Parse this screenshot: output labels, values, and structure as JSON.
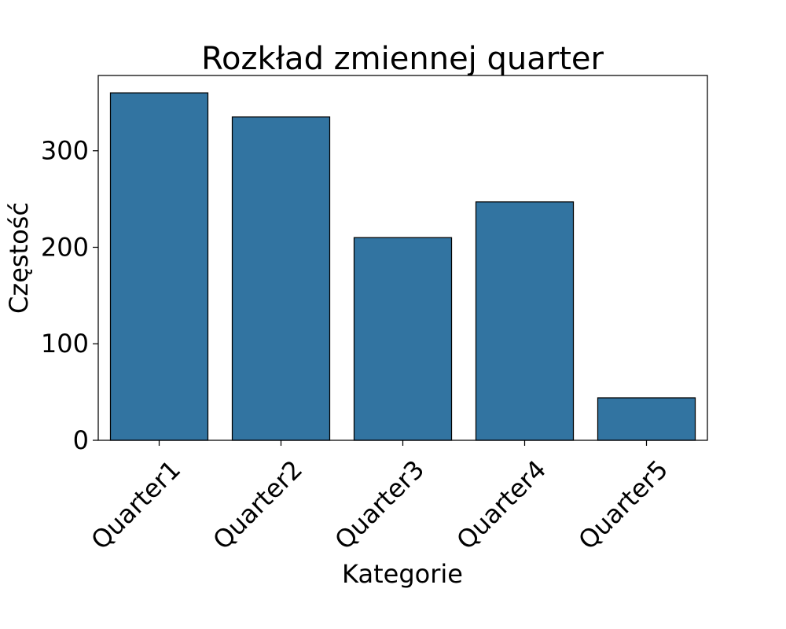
{
  "chart_data": {
    "type": "bar",
    "title": "Rozkład zmiennej quarter",
    "xlabel": "Kategorie",
    "ylabel": "Częstość",
    "categories": [
      "Quarter1",
      "Quarter2",
      "Quarter3",
      "Quarter4",
      "Quarter5"
    ],
    "values": [
      360,
      335,
      210,
      247,
      44
    ],
    "ylim": [
      0,
      378
    ],
    "yticks": [
      0,
      100,
      200,
      300
    ],
    "x_tick_rotation": 45,
    "grid": false,
    "legend": "none",
    "colors": {
      "bar": "#3274a1",
      "bar_edge": "#000000"
    }
  }
}
